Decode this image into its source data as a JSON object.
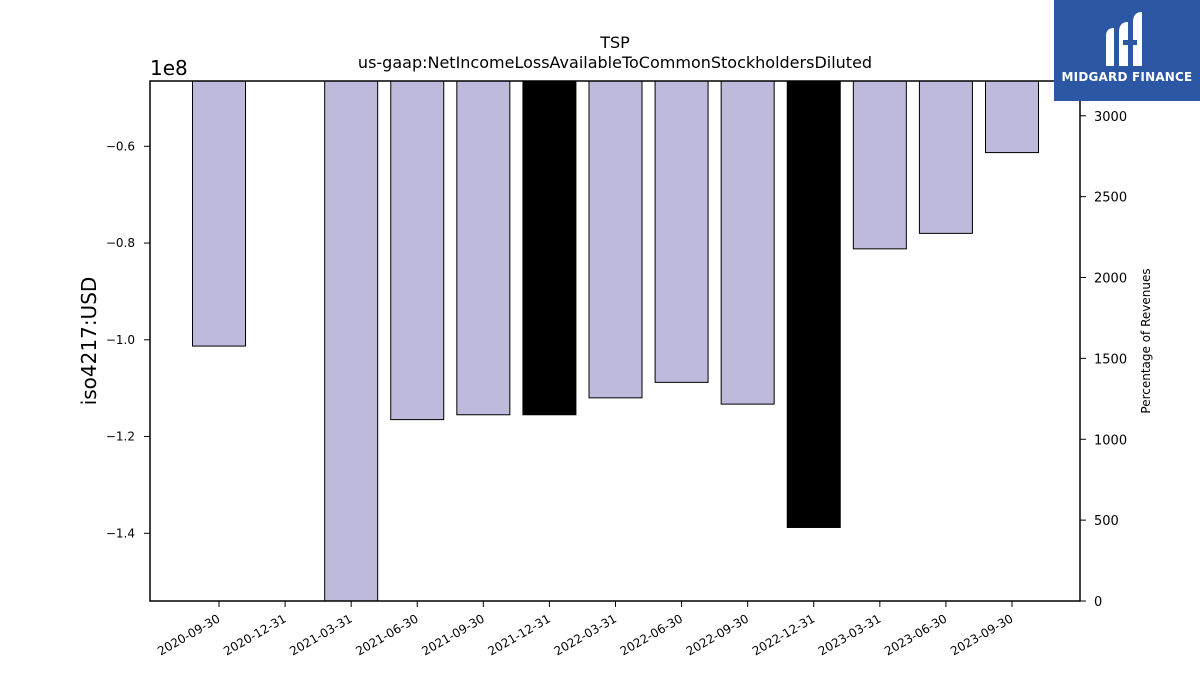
{
  "chart_data": {
    "type": "bar",
    "title": "TSP",
    "subtitle": "us-gaap:NetIncomeLossAvailableToCommonStockholdersDiluted",
    "ylabel": "iso4217:USD",
    "y_offset_label": "1e8",
    "y2label": "Percentage of Revenues",
    "categories": [
      "2020-09-30",
      "2020-12-31",
      "2021-03-31",
      "2021-06-30",
      "2021-09-30",
      "2021-12-31",
      "2022-03-31",
      "2022-06-30",
      "2022-09-30",
      "2022-12-31",
      "2023-03-31",
      "2023-06-30",
      "2023-09-30"
    ],
    "values": [
      -1.013,
      null,
      -1.54,
      -1.165,
      -1.155,
      -1.155,
      -1.12,
      -1.088,
      -1.133,
      -1.388,
      -0.812,
      -0.78,
      -0.613
    ],
    "highlighted": [
      false,
      false,
      false,
      false,
      false,
      true,
      false,
      false,
      false,
      true,
      false,
      false,
      false
    ],
    "ylim": [
      -1.54,
      -0.465
    ],
    "yticks": [
      -0.6,
      -0.8,
      -1.0,
      -1.2,
      -1.4
    ],
    "ytick_labels": [
      "−0.6",
      "−0.8",
      "−1.0",
      "−1.2",
      "−1.4"
    ],
    "y2lim": [
      0,
      3215
    ],
    "y2ticks": [
      0,
      500,
      1000,
      1500,
      2000,
      2500,
      3000
    ],
    "y2tick_labels": [
      "0",
      "500",
      "1000",
      "1500",
      "2000",
      "2500",
      "3000"
    ],
    "colors": {
      "bar": "#bebadb",
      "highlight": "#000000",
      "edge": "#000000"
    }
  },
  "logo": {
    "text": "MIDGARD FINANCE",
    "background": "#2b57a5"
  }
}
